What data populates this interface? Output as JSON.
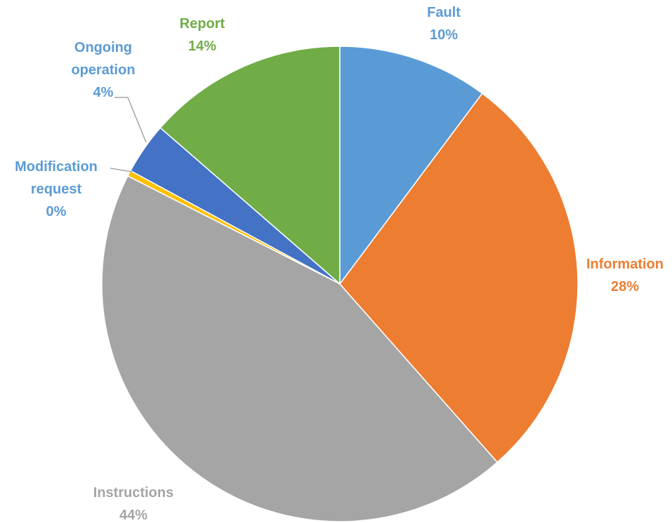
{
  "chart_data": {
    "type": "pie",
    "categories": [
      "Fault",
      "Information",
      "Instructions",
      "Modification request",
      "Ongoing operation",
      "Report"
    ],
    "values": [
      10.2,
      28.3,
      44.0,
      0.4,
      3.5,
      13.6
    ],
    "value_labels": [
      "10%",
      "28%",
      "44%",
      "0%",
      "4%",
      "14%"
    ],
    "colors": [
      "#5b9bd5",
      "#ed7d31",
      "#a5a5a5",
      "#ffc000",
      "#4472c4",
      "#70ad47"
    ],
    "label_colors": [
      "#5b9bd5",
      "#ed7d31",
      "#a5a5a5",
      "#5b9bd5",
      "#5b9bd5",
      "#70ad47"
    ]
  }
}
